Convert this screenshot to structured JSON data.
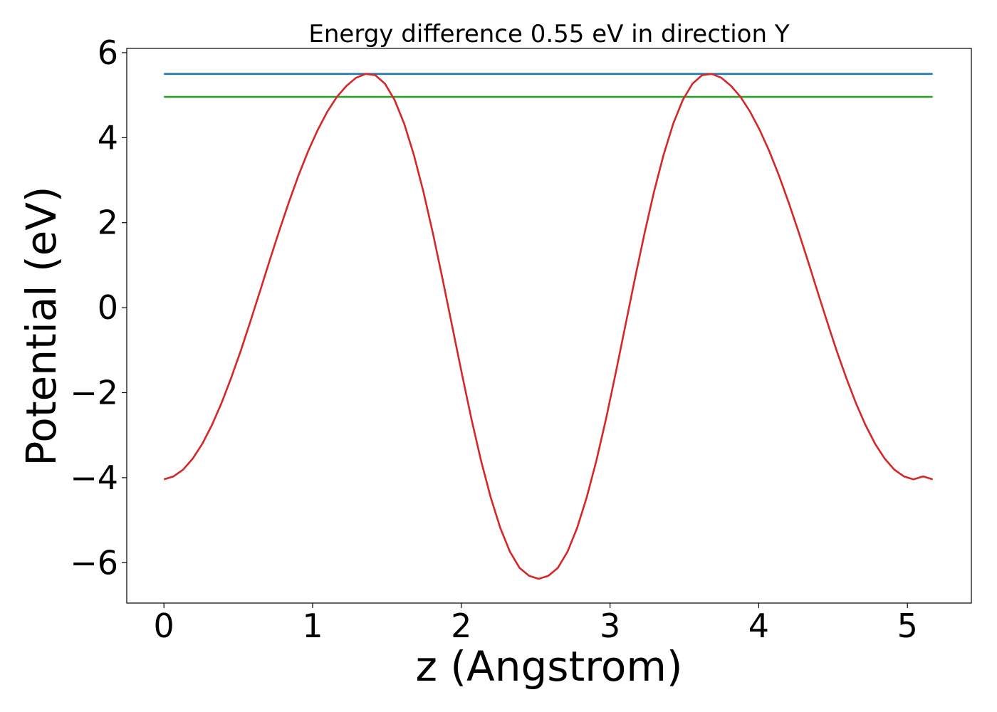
{
  "chart_data": {
    "type": "line",
    "title": "Energy difference 0.55 eV in direction Y",
    "xlabel": "z (Angstrom)",
    "ylabel": "Potential (eV)",
    "xlim": [
      -0.25,
      5.43
    ],
    "ylim": [
      -6.95,
      6.1
    ],
    "x_ticks": [
      0,
      1,
      2,
      3,
      4,
      5
    ],
    "x_tick_labels": [
      "0",
      "1",
      "2",
      "3",
      "4",
      "5"
    ],
    "y_ticks": [
      6,
      4,
      2,
      0,
      -2,
      -4,
      -6
    ],
    "y_tick_labels": [
      "6",
      "4",
      "2",
      "0",
      "−2",
      "−4",
      "−6"
    ],
    "grid": false,
    "series": [
      {
        "color": "#1f77b4",
        "x": [
          0,
          5.17
        ],
        "y": [
          5.5,
          5.5
        ]
      },
      {
        "color": "#2ca02c",
        "x": [
          0,
          5.17
        ],
        "y": [
          4.96,
          4.96
        ]
      },
      {
        "color": "#d62728",
        "x": [
          0,
          0.0646,
          0.1293,
          0.1939,
          0.2585,
          0.3231,
          0.3878,
          0.4524,
          0.517,
          0.5816,
          0.6463,
          0.7109,
          0.7755,
          0.8401,
          0.9048,
          0.9694,
          1.034,
          1.0986,
          1.1633,
          1.2279,
          1.2925,
          1.3571,
          1.4218,
          1.4864,
          1.551,
          1.6156,
          1.6803,
          1.7449,
          1.8095,
          1.8741,
          1.9388,
          2.0034,
          2.068,
          2.1326,
          2.1973,
          2.2619,
          2.3265,
          2.3911,
          2.4558,
          2.5204,
          2.585,
          2.6496,
          2.7143,
          2.7789,
          2.8435,
          2.9081,
          2.9728,
          3.0374,
          3.102,
          3.1666,
          3.2313,
          3.2959,
          3.3605,
          3.4251,
          3.4898,
          3.5544,
          3.619,
          3.6836,
          3.7483,
          3.8129,
          3.8775,
          3.9421,
          4.0068,
          4.0714,
          4.136,
          4.2006,
          4.2653,
          4.3299,
          4.3945,
          4.4591,
          4.5238,
          4.5884,
          4.653,
          4.7176,
          4.7823,
          4.8469,
          4.9115,
          4.9761,
          5.0408,
          5.1054,
          5.17
        ],
        "y": [
          -4.04,
          -3.97,
          -3.81,
          -3.55,
          -3.2,
          -2.76,
          -2.24,
          -1.65,
          -1.01,
          -0.32,
          0.39,
          1.11,
          1.81,
          2.48,
          3.11,
          3.68,
          4.18,
          4.61,
          4.96,
          5.22,
          5.41,
          5.5,
          5.47,
          5.27,
          4.89,
          4.33,
          3.6,
          2.73,
          1.74,
          0.67,
          -0.44,
          -1.55,
          -2.62,
          -3.6,
          -4.46,
          -5.18,
          -5.74,
          -6.12,
          -6.31,
          -6.38,
          -6.31,
          -6.12,
          -5.74,
          -5.18,
          -4.46,
          -3.6,
          -2.62,
          -1.55,
          -0.44,
          0.67,
          1.74,
          2.73,
          3.6,
          4.33,
          4.89,
          5.27,
          5.47,
          5.5,
          5.41,
          5.22,
          4.96,
          4.61,
          4.18,
          3.68,
          3.11,
          2.48,
          1.81,
          1.11,
          0.39,
          -0.32,
          -1.01,
          -1.65,
          -2.24,
          -2.76,
          -3.2,
          -3.55,
          -3.81,
          -3.97,
          -4.04,
          -3.97,
          -4.04
        ]
      }
    ]
  }
}
